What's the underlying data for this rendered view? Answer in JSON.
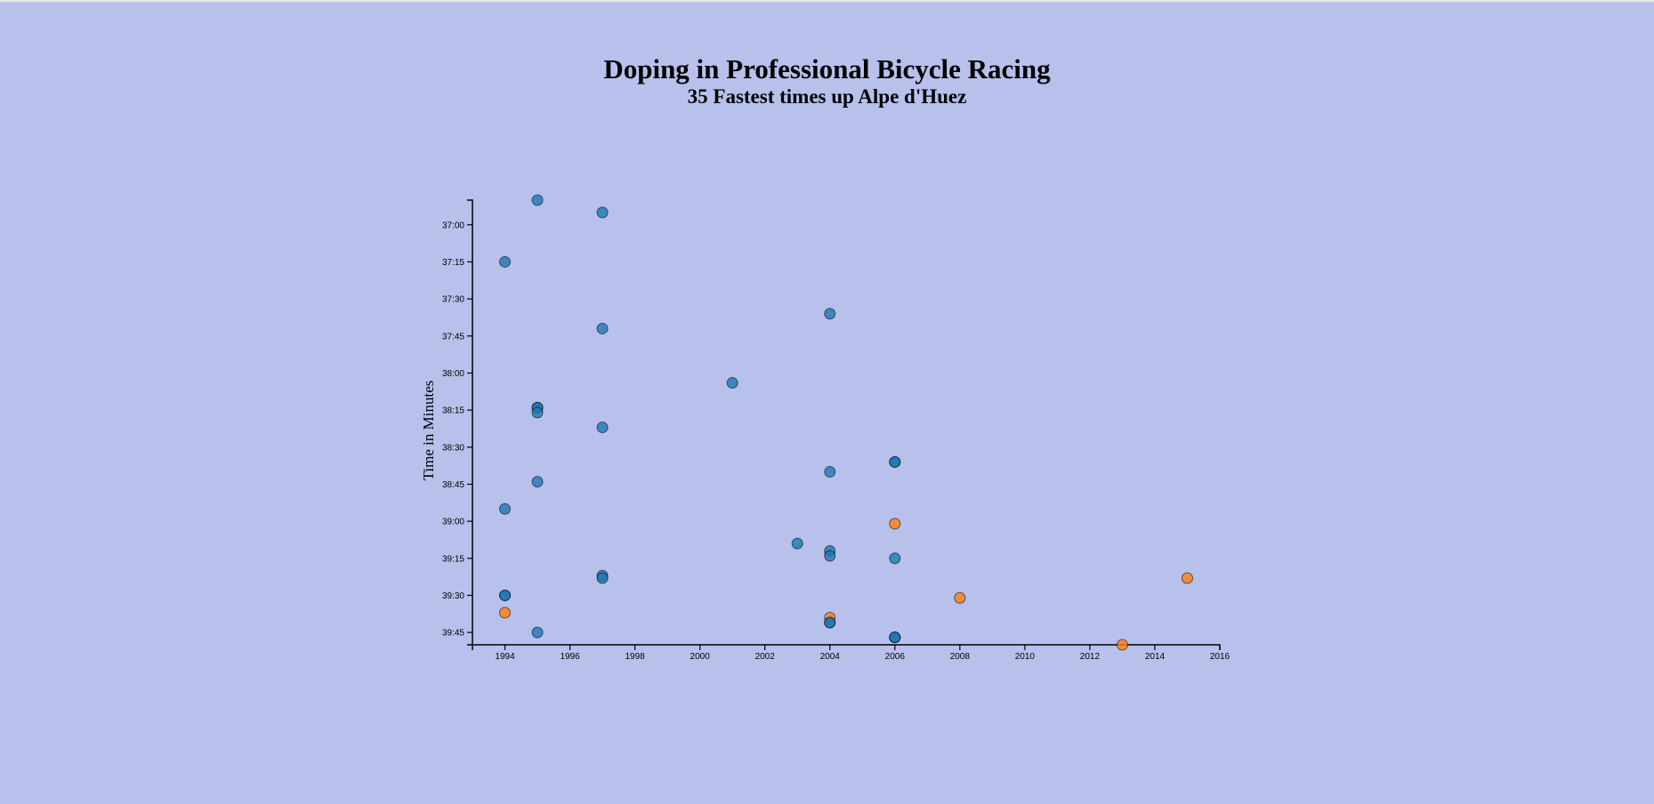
{
  "page": {
    "background": "#b8c1ec"
  },
  "chart_data": {
    "type": "scatter",
    "title": "Doping in Professional Bicycle Racing",
    "subtitle": "35 Fastest times up Alpe d'Huez",
    "xlabel": "",
    "ylabel": "Time in Minutes",
    "xlim": [
      1993,
      2016
    ],
    "ylim_seconds": [
      2210,
      2390
    ],
    "y_inverted": true,
    "grid": false,
    "x_ticks": [
      "1994",
      "1996",
      "1998",
      "2000",
      "2002",
      "2004",
      "2006",
      "2008",
      "2010",
      "2012",
      "2014",
      "2016"
    ],
    "y_ticks": [
      "37:00",
      "37:15",
      "37:30",
      "37:45",
      "38:00",
      "38:15",
      "38:30",
      "38:45",
      "39:00",
      "39:15",
      "39:30",
      "39:45"
    ],
    "colors": {
      "doping": "#1f77b4",
      "no_doping": "#ff7f0e"
    },
    "points": [
      {
        "year": 1995,
        "time": "36:50",
        "doping": true
      },
      {
        "year": 1997,
        "time": "36:55",
        "doping": true
      },
      {
        "year": 1994,
        "time": "37:15",
        "doping": true
      },
      {
        "year": 2004,
        "time": "37:36",
        "doping": true
      },
      {
        "year": 1997,
        "time": "37:42",
        "doping": true
      },
      {
        "year": 2001,
        "time": "38:04",
        "doping": true
      },
      {
        "year": 1995,
        "time": "38:14",
        "doping": true
      },
      {
        "year": 1995,
        "time": "38:14",
        "doping": true
      },
      {
        "year": 1995,
        "time": "38:16",
        "doping": true
      },
      {
        "year": 1997,
        "time": "38:22",
        "doping": true
      },
      {
        "year": 2006,
        "time": "38:36",
        "doping": true
      },
      {
        "year": 2006,
        "time": "38:36",
        "doping": true
      },
      {
        "year": 2004,
        "time": "38:40",
        "doping": true
      },
      {
        "year": 1995,
        "time": "38:44",
        "doping": true
      },
      {
        "year": 1994,
        "time": "38:55",
        "doping": true
      },
      {
        "year": 2006,
        "time": "39:01",
        "doping": false
      },
      {
        "year": 2003,
        "time": "39:09",
        "doping": true
      },
      {
        "year": 2004,
        "time": "39:12",
        "doping": true
      },
      {
        "year": 2004,
        "time": "39:14",
        "doping": true
      },
      {
        "year": 2006,
        "time": "39:15",
        "doping": true
      },
      {
        "year": 1997,
        "time": "39:22",
        "doping": true
      },
      {
        "year": 1997,
        "time": "39:23",
        "doping": true
      },
      {
        "year": 2015,
        "time": "39:23",
        "doping": false
      },
      {
        "year": 1994,
        "time": "39:30",
        "doping": true
      },
      {
        "year": 1994,
        "time": "39:30",
        "doping": true
      },
      {
        "year": 2008,
        "time": "39:31",
        "doping": false
      },
      {
        "year": 1994,
        "time": "39:37",
        "doping": false
      },
      {
        "year": 2004,
        "time": "39:39",
        "doping": false
      },
      {
        "year": 2004,
        "time": "39:41",
        "doping": true
      },
      {
        "year": 2004,
        "time": "39:41",
        "doping": true
      },
      {
        "year": 1995,
        "time": "39:45",
        "doping": true
      },
      {
        "year": 2006,
        "time": "39:47",
        "doping": true
      },
      {
        "year": 2006,
        "time": "39:47",
        "doping": true
      },
      {
        "year": 2006,
        "time": "39:47",
        "doping": true
      },
      {
        "year": 2013,
        "time": "39:50",
        "doping": false
      }
    ]
  }
}
